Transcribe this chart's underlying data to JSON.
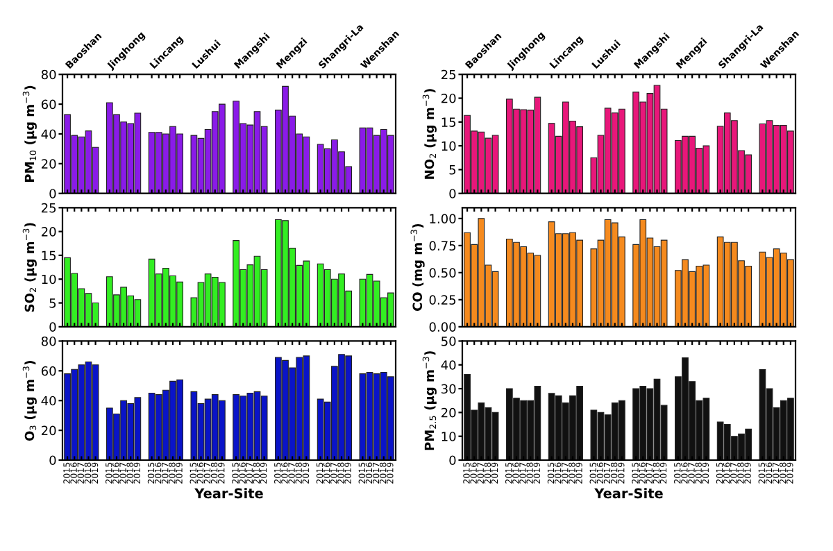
{
  "chart_data": [
    {
      "type": "bar",
      "ylabel": "PM$_{10}$ (μg m$^{−3}$)",
      "color": "#8a1be8",
      "tick_labels": "y",
      "grid": false,
      "legend": false,
      "annotations": [
        "Baoshan",
        "Jinghong",
        "Lincang",
        "Lushui",
        "Mangshi",
        "Mengzi",
        "Shangri-La",
        "Wenshan"
      ],
      "categories": [
        "2015",
        "2016",
        "2017",
        "2018",
        "2019",
        null,
        "2015",
        "2016",
        "2017",
        "2018",
        "2019",
        null,
        "2015",
        "2016",
        "2017",
        "2018",
        "2019",
        null,
        "2015",
        "2016",
        "2017",
        "2018",
        "2019",
        null,
        "2015",
        "2016",
        "2017",
        "2018",
        "2019",
        null,
        "2015",
        "2016",
        "2017",
        "2018",
        "2019",
        null,
        "2015",
        "2016",
        "2017",
        "2018",
        "2019",
        null,
        "2015",
        "2016",
        "2017",
        "2018",
        "2019"
      ],
      "values": [
        53,
        39,
        38,
        42,
        31,
        null,
        61,
        53,
        48,
        47,
        54,
        null,
        41,
        41,
        40,
        45,
        40,
        null,
        39,
        37,
        43,
        55,
        60,
        null,
        62,
        47,
        46,
        55,
        45,
        null,
        56,
        72,
        52,
        40,
        38,
        null,
        33,
        30,
        36,
        28,
        18,
        null,
        44,
        44,
        39,
        43,
        39
      ],
      "ylim": [
        0,
        80
      ],
      "yticks": [
        0,
        20,
        40,
        60,
        80
      ]
    },
    {
      "type": "bar",
      "ylabel": "NO$_{2}$ (μg m$^{−3}$)",
      "color": "#e8177a",
      "tick_labels": "y",
      "grid": false,
      "legend": false,
      "annotations": [
        "Baoshan",
        "Jinghong",
        "Lincang",
        "Lushui",
        "Mangshi",
        "Mengzi",
        "Shangri-La",
        "Wenshan"
      ],
      "categories": [
        "2015",
        "2016",
        "2017",
        "2018",
        "2019",
        null,
        "2015",
        "2016",
        "2017",
        "2018",
        "2019",
        null,
        "2015",
        "2016",
        "2017",
        "2018",
        "2019",
        null,
        "2015",
        "2016",
        "2017",
        "2018",
        "2019",
        null,
        "2015",
        "2016",
        "2017",
        "2018",
        "2019",
        null,
        "2015",
        "2016",
        "2017",
        "2018",
        "2019",
        null,
        "2015",
        "2016",
        "2017",
        "2018",
        "2019",
        null,
        "2015",
        "2016",
        "2017",
        "2018",
        "2019"
      ],
      "values": [
        16.4,
        13.1,
        12.9,
        11.6,
        12.2,
        null,
        19.8,
        17.7,
        17.6,
        17.5,
        20.2,
        null,
        14.7,
        12,
        19.2,
        15.2,
        14,
        null,
        7.5,
        12.2,
        17.9,
        16.9,
        17.7,
        null,
        21.3,
        19.2,
        21,
        22.7,
        17.7,
        null,
        11.1,
        12,
        12,
        9.5,
        10,
        null,
        14.1,
        16.9,
        15.3,
        9,
        8.1,
        null,
        14.6,
        15.3,
        14.3,
        14.3,
        13.1
      ],
      "ylim": [
        0,
        25
      ],
      "yticks": [
        0,
        5,
        10,
        15,
        20,
        25
      ]
    },
    {
      "type": "bar",
      "ylabel": "SO$_{2}$ (μg m$^{−3}$)",
      "color": "#33ee22",
      "tick_labels": "y",
      "grid": false,
      "legend": false,
      "categories": [
        "2015",
        "2016",
        "2017",
        "2018",
        "2019",
        null,
        "2015",
        "2016",
        "2017",
        "2018",
        "2019",
        null,
        "2015",
        "2016",
        "2017",
        "2018",
        "2019",
        null,
        "2015",
        "2016",
        "2017",
        "2018",
        "2019",
        null,
        "2015",
        "2016",
        "2017",
        "2018",
        "2019",
        null,
        "2015",
        "2016",
        "2017",
        "2018",
        "2019",
        null,
        "2015",
        "2016",
        "2017",
        "2018",
        "2019",
        null,
        "2015",
        "2016",
        "2017",
        "2018",
        "2019"
      ],
      "values": [
        14.5,
        11.2,
        8,
        7,
        5,
        null,
        10.5,
        6.7,
        8.3,
        6.5,
        5.7,
        null,
        14.2,
        11.1,
        12.3,
        10.7,
        9.4,
        null,
        6.1,
        9.3,
        11.1,
        10.4,
        9.3,
        null,
        18.1,
        12,
        13,
        14.8,
        12,
        null,
        22.5,
        22.3,
        16.5,
        12.9,
        13.8,
        null,
        13.2,
        12,
        10,
        11.1,
        7.5,
        null,
        10,
        11,
        9.6,
        6.1,
        7.1
      ],
      "ylim": [
        0,
        25
      ],
      "yticks": [
        0,
        5,
        10,
        15,
        20,
        25
      ]
    },
    {
      "type": "bar",
      "ylabel": "CO (mg m$^{−3}$)",
      "color": "#f58a1e",
      "tick_labels": "y",
      "grid": false,
      "legend": false,
      "categories": [
        "2015",
        "2016",
        "2017",
        "2018",
        "2019",
        null,
        "2015",
        "2016",
        "2017",
        "2018",
        "2019",
        null,
        "2015",
        "2016",
        "2017",
        "2018",
        "2019",
        null,
        "2015",
        "2016",
        "2017",
        "2018",
        "2019",
        null,
        "2015",
        "2016",
        "2017",
        "2018",
        "2019",
        null,
        "2015",
        "2016",
        "2017",
        "2018",
        "2019",
        null,
        "2015",
        "2016",
        "2017",
        "2018",
        "2019",
        null,
        "2015",
        "2016",
        "2017",
        "2018",
        "2019"
      ],
      "values": [
        0.87,
        0.76,
        1.0,
        0.57,
        0.51,
        null,
        0.81,
        0.78,
        0.74,
        0.68,
        0.66,
        null,
        0.97,
        0.86,
        0.86,
        0.87,
        0.8,
        null,
        0.72,
        0.8,
        0.99,
        0.96,
        0.83,
        null,
        0.76,
        0.99,
        0.82,
        0.74,
        0.8,
        null,
        0.52,
        0.62,
        0.51,
        0.56,
        0.57,
        null,
        0.83,
        0.78,
        0.78,
        0.61,
        0.56,
        null,
        0.69,
        0.64,
        0.72,
        0.68,
        0.62
      ],
      "ylim": [
        0,
        1.1
      ],
      "yticks": [
        {
          "value": 0,
          "label": "0.00"
        },
        {
          "value": 0.25,
          "label": "0.25"
        },
        {
          "value": 0.5,
          "label": "0.50"
        },
        {
          "value": 0.75,
          "label": "0.75"
        },
        {
          "value": 1.0,
          "label": "1.00"
        }
      ]
    },
    {
      "type": "bar",
      "ylabel": "O$_{3}$ (μg m$^{−3}$)",
      "xlabel": "Year-Site",
      "color": "#0a14c8",
      "grid": false,
      "legend": false,
      "categories": [
        "2015",
        "2016",
        "2017",
        "2018",
        "2019",
        null,
        "2015",
        "2016",
        "2017",
        "2018",
        "2019",
        null,
        "2015",
        "2016",
        "2017",
        "2018",
        "2019",
        null,
        "2015",
        "2016",
        "2017",
        "2018",
        "2019",
        null,
        "2015",
        "2016",
        "2017",
        "2018",
        "2019",
        null,
        "2015",
        "2016",
        "2017",
        "2018",
        "2019",
        null,
        "2015",
        "2016",
        "2017",
        "2018",
        "2019",
        null,
        "2015",
        "2016",
        "2017",
        "2018",
        "2019"
      ],
      "values": [
        58,
        61,
        64,
        66,
        64,
        null,
        35,
        31,
        40,
        38,
        42,
        null,
        45,
        44,
        47,
        53,
        54,
        null,
        46,
        38,
        41,
        44,
        40,
        null,
        44,
        43,
        45,
        46,
        43,
        null,
        69,
        67,
        62,
        69,
        70,
        null,
        41,
        39,
        63,
        71,
        70,
        null,
        58,
        59,
        58,
        59,
        56
      ],
      "ylim": [
        0,
        80
      ],
      "yticks": [
        0,
        20,
        40,
        60,
        80
      ]
    },
    {
      "type": "bar",
      "ylabel": "PM$_{2.5}$ (μg m$^{−3}$)",
      "xlabel": "Year-Site",
      "color": "#111111",
      "grid": false,
      "legend": false,
      "categories": [
        "2015",
        "2016",
        "2017",
        "2018",
        "2019",
        null,
        "2015",
        "2016",
        "2017",
        "2018",
        "2019",
        null,
        "2015",
        "2016",
        "2017",
        "2018",
        "2019",
        null,
        "2015",
        "2016",
        "2017",
        "2018",
        "2019",
        null,
        "2015",
        "2016",
        "2017",
        "2018",
        "2019",
        null,
        "2015",
        "2016",
        "2017",
        "2018",
        "2019",
        null,
        "2015",
        "2016",
        "2017",
        "2018",
        "2019",
        null,
        "2015",
        "2016",
        "2017",
        "2018",
        "2019"
      ],
      "values": [
        36,
        21,
        24,
        22,
        20,
        null,
        30,
        26,
        25,
        25,
        31,
        null,
        28,
        27,
        24,
        27,
        31,
        null,
        21,
        20,
        19,
        24,
        25,
        null,
        30,
        31,
        30,
        34,
        23,
        null,
        35,
        43,
        33,
        25,
        26,
        null,
        16,
        15,
        10,
        11,
        13,
        null,
        38,
        30,
        22,
        25,
        26
      ],
      "ylim": [
        0,
        50
      ],
      "yticks": [
        0,
        10,
        20,
        30,
        40,
        50
      ]
    }
  ]
}
